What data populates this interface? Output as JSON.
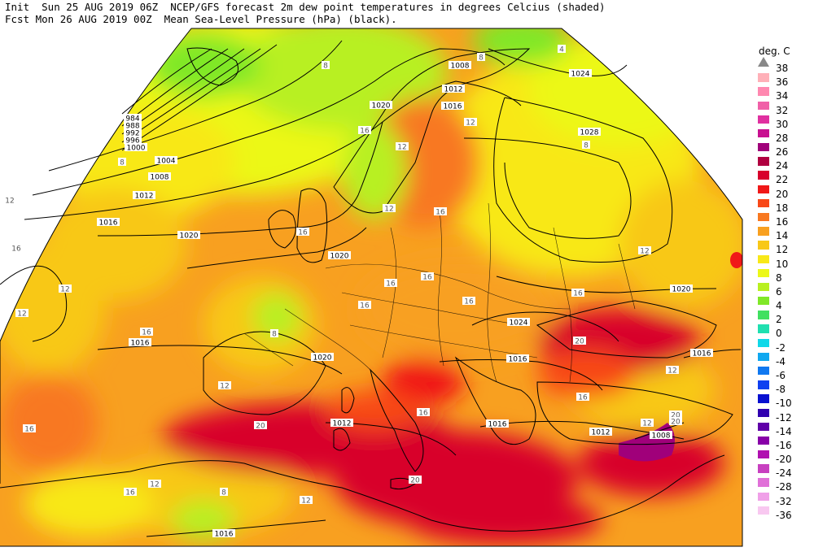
{
  "header": {
    "line1": "Init  Sun 25 AUG 2019 06Z  NCEP/GFS forecast 2m dew point temperatures in degrees Celcius (shaded)",
    "line2": "Fcst Mon 26 AUG 2019 00Z  Mean Sea-Level Pressure (hPa) (black)."
  },
  "legend": {
    "title": "deg. C",
    "entries": [
      {
        "label": "38",
        "color": "#b0b0b0"
      },
      {
        "label": "36",
        "color": "#ffb0b8"
      },
      {
        "label": "34",
        "color": "#ff88b0"
      },
      {
        "label": "32",
        "color": "#f060a8"
      },
      {
        "label": "30",
        "color": "#e030a0"
      },
      {
        "label": "28",
        "color": "#c81090"
      },
      {
        "label": "26",
        "color": "#a0007a"
      },
      {
        "label": "24",
        "color": "#b00040"
      },
      {
        "label": "22",
        "color": "#d8002c"
      },
      {
        "label": "20",
        "color": "#f01818"
      },
      {
        "label": "18",
        "color": "#f84818"
      },
      {
        "label": "16",
        "color": "#f87820"
      },
      {
        "label": "14",
        "color": "#f8a020"
      },
      {
        "label": "12",
        "color": "#f8c818"
      },
      {
        "label": "10",
        "color": "#f8e818"
      },
      {
        "label": "8",
        "color": "#ecf818"
      },
      {
        "label": "6",
        "color": "#b8f020"
      },
      {
        "label": "4",
        "color": "#80e828"
      },
      {
        "label": "2",
        "color": "#40e060"
      },
      {
        "label": "0",
        "color": "#20e0b0"
      },
      {
        "label": "-2",
        "color": "#10d8e8"
      },
      {
        "label": "-4",
        "color": "#10a8f0"
      },
      {
        "label": "-6",
        "color": "#1078f0"
      },
      {
        "label": "-8",
        "color": "#1040f0"
      },
      {
        "label": "-10",
        "color": "#0810d0"
      },
      {
        "label": "-12",
        "color": "#3000b0"
      },
      {
        "label": "-14",
        "color": "#6000a8"
      },
      {
        "label": "-16",
        "color": "#8800a8"
      },
      {
        "label": "-20",
        "color": "#b010b0"
      },
      {
        "label": "-24",
        "color": "#c840c0"
      },
      {
        "label": "-28",
        "color": "#e070d8"
      },
      {
        "label": "-32",
        "color": "#f0a0e8"
      },
      {
        "label": "-36",
        "color": "#f8c8f0"
      }
    ]
  },
  "isobar_labels": [
    {
      "text": "1008"
    },
    {
      "text": "1012"
    },
    {
      "text": "1016"
    },
    {
      "text": "1020"
    },
    {
      "text": "1024"
    },
    {
      "text": "1028"
    },
    {
      "text": "984"
    },
    {
      "text": "988"
    },
    {
      "text": "992"
    },
    {
      "text": "996"
    },
    {
      "text": "1000"
    },
    {
      "text": "1004"
    },
    {
      "text": "1008"
    },
    {
      "text": "1012"
    },
    {
      "text": "1016"
    },
    {
      "text": "1020"
    },
    {
      "text": "1020"
    },
    {
      "text": "1024"
    },
    {
      "text": "1020"
    },
    {
      "text": "1020"
    },
    {
      "text": "1016"
    },
    {
      "text": "1016"
    },
    {
      "text": "1012"
    },
    {
      "text": "1008"
    },
    {
      "text": "1016"
    },
    {
      "text": "1012"
    },
    {
      "text": "1016"
    },
    {
      "text": "1016"
    }
  ],
  "dewpoint_labels": [
    "8",
    "4",
    "8",
    "12",
    "8",
    "12",
    "12",
    "16",
    "12",
    "16",
    "8",
    "16",
    "16",
    "12",
    "16",
    "12",
    "16",
    "12",
    "16",
    "20",
    "20",
    "16",
    "16",
    "16",
    "12",
    "12",
    "8",
    "16",
    "20",
    "20",
    "16",
    "12",
    "8",
    "16",
    "12",
    "12",
    "16",
    "20"
  ]
}
